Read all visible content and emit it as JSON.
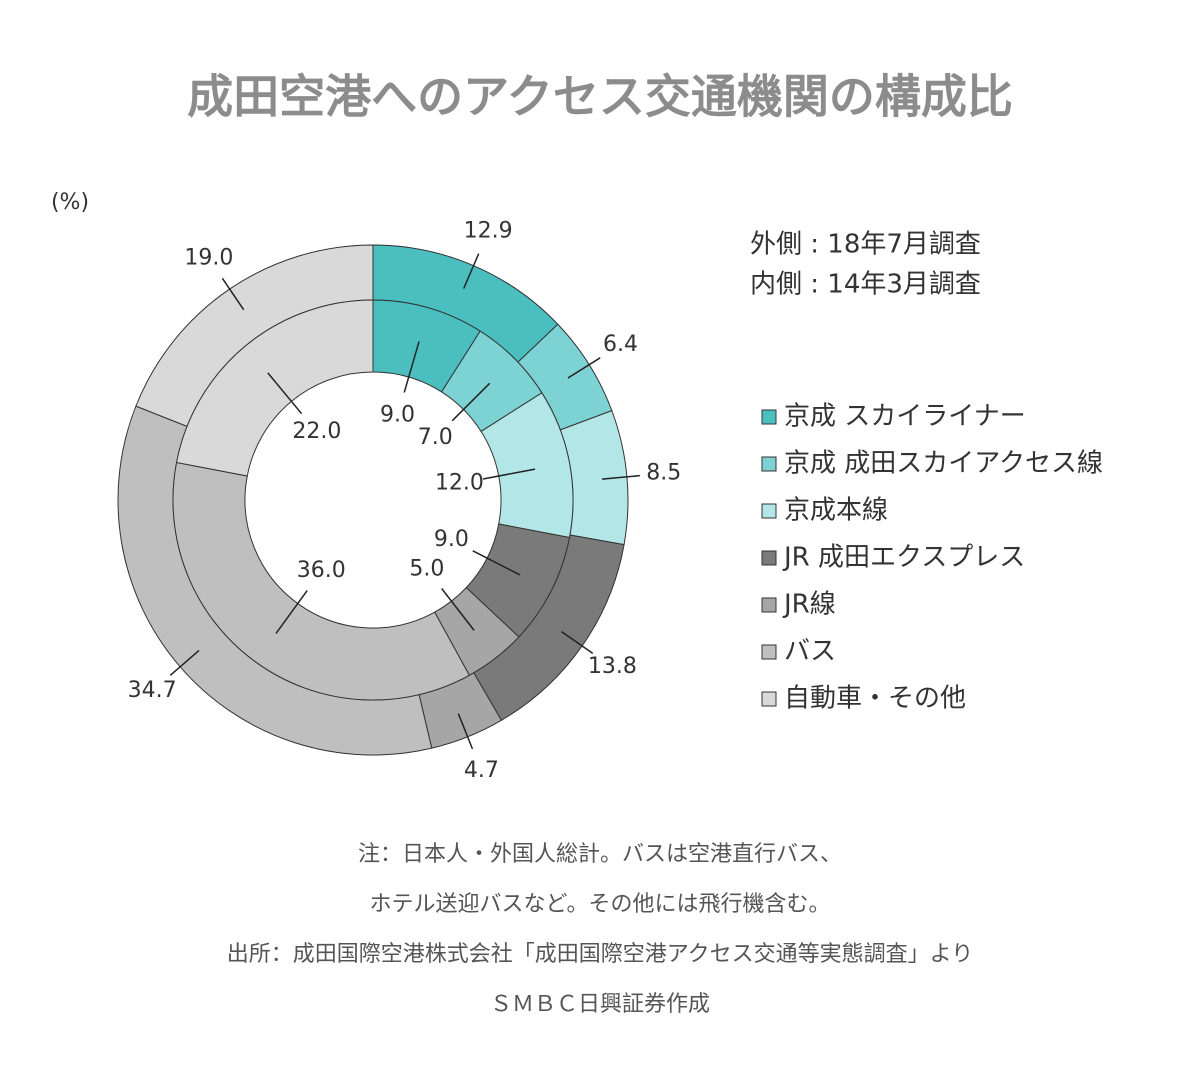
{
  "chart_data": {
    "type": "nested-donut",
    "title": "成田空港へのアクセス交通機関の構成比",
    "unit_label": "(%)",
    "categories": [
      "京成 スカイライナー",
      "京成 成田スカイアクセス線",
      "京成本線",
      "JR 成田エクスプレス",
      "JR線",
      "バス",
      "自動車・その他"
    ],
    "colors": [
      "#4bbfbf",
      "#7dd3d3",
      "#b3e6e6",
      "#7a7a7a",
      "#a6a6a6",
      "#bfbfbf",
      "#d9d9d9"
    ],
    "series": [
      {
        "name": "外側 : 18年7月調査",
        "ring": "outer",
        "values": [
          12.9,
          6.4,
          8.5,
          13.8,
          4.7,
          34.7,
          19.0
        ],
        "value_labels": [
          "12.9",
          "6.4",
          "8.5",
          "13.8",
          "4.7",
          "34.7",
          "19.0"
        ]
      },
      {
        "name": "内側 : 14年3月調査",
        "ring": "inner",
        "values": [
          9.0,
          7.0,
          12.0,
          9.0,
          5.0,
          36.0,
          22.0
        ],
        "value_labels": [
          "9.0",
          "7.0",
          "12.0",
          "9.0",
          "5.0",
          "36.0",
          "22.0"
        ]
      }
    ],
    "notes": [
      "注：日本人・外国人総計。バスは空港直行バス、",
      "ホテル送迎バスなど。その他には飛行機含む。",
      "出所：成田国際空港株式会社「成田国際空港アクセス交通等実態調査」より",
      "ＳＭＢＣ日興証券作成"
    ]
  }
}
